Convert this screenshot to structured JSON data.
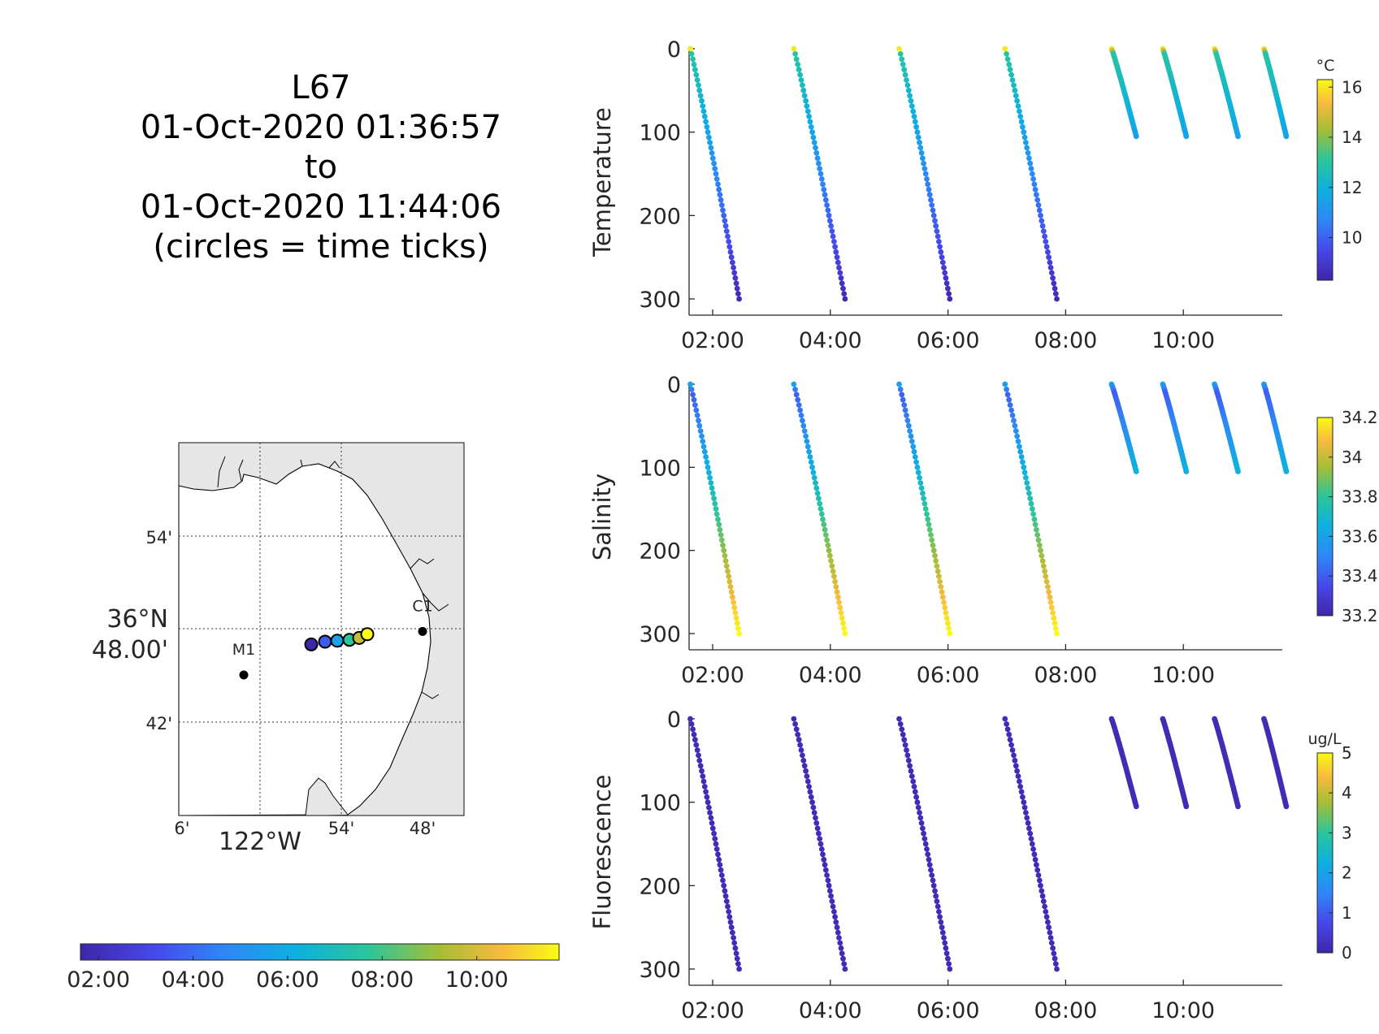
{
  "title_lines": [
    "L67",
    "01-Oct-2020 01:36:57",
    "to",
    "01-Oct-2020 11:44:06",
    "(circles = time ticks)"
  ],
  "chart_data": [
    {
      "type": "scatter",
      "name": "temperature-profile",
      "ylabel": "Temperature",
      "x_ticks": [
        "02:00",
        "04:00",
        "06:00",
        "08:00",
        "10:00"
      ],
      "y_ticks": [
        "0",
        "100",
        "200",
        "300"
      ],
      "ylim": [
        0,
        320
      ],
      "y_reversed": true,
      "colorbar": {
        "unit": "°C",
        "ticks": [
          "16",
          "14",
          "12",
          "10"
        ],
        "tick_values": [
          16,
          14,
          12,
          10
        ],
        "range": [
          8.3,
          16.3
        ]
      },
      "profiles": [
        {
          "t_start": 1.62,
          "t_end": 2.45,
          "max_depth": 300
        },
        {
          "t_start": 3.38,
          "t_end": 4.25,
          "max_depth": 300
        },
        {
          "t_start": 5.17,
          "t_end": 6.03,
          "max_depth": 300
        },
        {
          "t_start": 6.97,
          "t_end": 7.85,
          "max_depth": 300
        },
        {
          "t_start": 8.78,
          "t_end": 9.2,
          "max_depth": 105
        },
        {
          "t_start": 9.65,
          "t_end": 10.05,
          "max_depth": 105
        },
        {
          "t_start": 10.53,
          "t_end": 10.93,
          "max_depth": 105
        },
        {
          "t_start": 11.37,
          "t_end": 11.75,
          "max_depth": 105
        }
      ]
    },
    {
      "type": "scatter",
      "name": "salinity-profile",
      "ylabel": "Salinity",
      "x_ticks": [
        "02:00",
        "04:00",
        "06:00",
        "08:00",
        "10:00"
      ],
      "y_ticks": [
        "0",
        "100",
        "200",
        "300"
      ],
      "ylim": [
        0,
        320
      ],
      "y_reversed": true,
      "colorbar": {
        "unit": "",
        "ticks": [
          "34.2",
          "34",
          "33.8",
          "33.6",
          "33.4",
          "33.2"
        ],
        "tick_values": [
          34.2,
          34.0,
          33.8,
          33.6,
          33.4,
          33.2
        ],
        "range": [
          33.2,
          34.2
        ]
      },
      "profiles": [
        {
          "t_start": 1.62,
          "t_end": 2.45,
          "max_depth": 300
        },
        {
          "t_start": 3.38,
          "t_end": 4.25,
          "max_depth": 300
        },
        {
          "t_start": 5.17,
          "t_end": 6.03,
          "max_depth": 300
        },
        {
          "t_start": 6.97,
          "t_end": 7.85,
          "max_depth": 300
        },
        {
          "t_start": 8.78,
          "t_end": 9.2,
          "max_depth": 105
        },
        {
          "t_start": 9.65,
          "t_end": 10.05,
          "max_depth": 105
        },
        {
          "t_start": 10.53,
          "t_end": 10.93,
          "max_depth": 105
        },
        {
          "t_start": 11.37,
          "t_end": 11.75,
          "max_depth": 105
        }
      ]
    },
    {
      "type": "scatter",
      "name": "fluorescence-profile",
      "ylabel": "Fluorescence",
      "x_ticks": [
        "02:00",
        "04:00",
        "06:00",
        "08:00",
        "10:00"
      ],
      "y_ticks": [
        "0",
        "100",
        "200",
        "300"
      ],
      "ylim": [
        0,
        320
      ],
      "y_reversed": true,
      "colorbar": {
        "unit": "ug/L",
        "ticks": [
          "5",
          "4",
          "3",
          "2",
          "1",
          "0"
        ],
        "tick_values": [
          5,
          4,
          3,
          2,
          1,
          0
        ],
        "range": [
          0,
          5
        ]
      },
      "profiles": [
        {
          "t_start": 1.62,
          "t_end": 2.45,
          "max_depth": 300
        },
        {
          "t_start": 3.38,
          "t_end": 4.25,
          "max_depth": 300
        },
        {
          "t_start": 5.17,
          "t_end": 6.03,
          "max_depth": 300
        },
        {
          "t_start": 6.97,
          "t_end": 7.85,
          "max_depth": 300
        },
        {
          "t_start": 8.78,
          "t_end": 9.2,
          "max_depth": 105
        },
        {
          "t_start": 9.65,
          "t_end": 10.05,
          "max_depth": 105
        },
        {
          "t_start": 10.53,
          "t_end": 10.93,
          "max_depth": 105
        },
        {
          "t_start": 11.37,
          "t_end": 11.75,
          "max_depth": 105
        }
      ]
    },
    {
      "type": "map",
      "name": "track-map",
      "lat_ticks": [
        "54'",
        "36°N 48.00'",
        "42'"
      ],
      "lon_ticks": [
        "6'",
        "122°W",
        "54'",
        "48'"
      ],
      "stations": [
        {
          "label": "C1",
          "lon": -121.8,
          "lat": 36.797
        },
        {
          "label": "M1",
          "lon": -122.02,
          "lat": 36.75
        }
      ],
      "track": [
        {
          "lon": -121.937,
          "lat": 36.783
        },
        {
          "lon": -121.92,
          "lat": 36.786
        },
        {
          "lon": -121.905,
          "lat": 36.787
        },
        {
          "lon": -121.89,
          "lat": 36.788
        },
        {
          "lon": -121.878,
          "lat": 36.79
        },
        {
          "lon": -121.868,
          "lat": 36.794
        }
      ]
    },
    {
      "type": "colorbar",
      "name": "time-colorbar",
      "ticks": [
        "02:00",
        "04:00",
        "06:00",
        "08:00",
        "10:00"
      ],
      "tick_values": [
        2,
        4,
        6,
        8,
        10
      ],
      "range": [
        1.62,
        11.74
      ]
    }
  ]
}
